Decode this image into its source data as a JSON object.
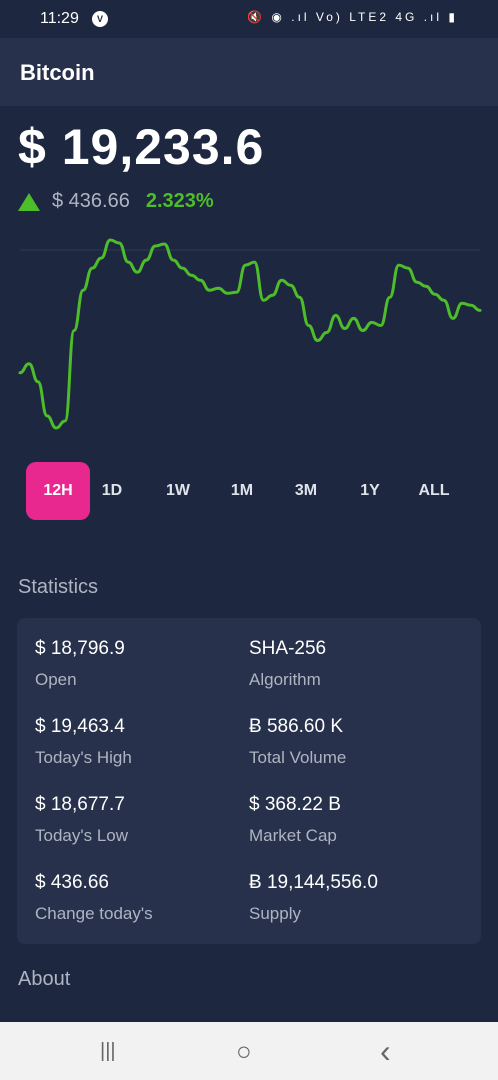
{
  "status_bar": {
    "time": "11:29",
    "badge": "V",
    "icons": "🔇 ◉ .ıl Vo) LTE2 4G .ıl ▮"
  },
  "app_bar": {
    "title": "Bitcoin"
  },
  "price": {
    "value": "$ 19,233.6",
    "change_abs": "$ 436.66",
    "change_pct": "2.323%",
    "direction": "up",
    "color_up": "#4dbd2a"
  },
  "chart_data": {
    "type": "line",
    "color": "#4dbd2a",
    "values": [
      372,
      363,
      381,
      415,
      427,
      420,
      330,
      290,
      268,
      258,
      240,
      243,
      262,
      272,
      260,
      246,
      244,
      260,
      268,
      275,
      280,
      290,
      288,
      293,
      292,
      265,
      262,
      300,
      295,
      280,
      285,
      297,
      325,
      340,
      332,
      315,
      328,
      318,
      330,
      322,
      325,
      297,
      265,
      268,
      282,
      286,
      294,
      300,
      318,
      303,
      305,
      310
    ],
    "title": "",
    "xlabel": "",
    "ylabel": ""
  },
  "ranges": {
    "items": [
      "12H",
      "1D",
      "1W",
      "1M",
      "3M",
      "1Y",
      "ALL"
    ],
    "active": "12H",
    "active_color": "#e8288e"
  },
  "statistics": {
    "heading": "Statistics",
    "items": [
      {
        "value": "$ 18,796.9",
        "label": "Open"
      },
      {
        "value": "SHA-256",
        "label": "Algorithm"
      },
      {
        "value": "$ 19,463.4",
        "label": "Today's High"
      },
      {
        "value": "Ƀ 586.60 K",
        "label": "Total Volume"
      },
      {
        "value": "$ 18,677.7",
        "label": "Today's Low"
      },
      {
        "value": "$ 368.22 B",
        "label": "Market Cap"
      },
      {
        "value": "$ 436.66",
        "label": "Change today's"
      },
      {
        "value": "Ƀ 19,144,556.0",
        "label": "Supply"
      }
    ]
  },
  "about": {
    "heading": "About"
  },
  "nav": {
    "recents": "|||",
    "home": "○",
    "back": "‹"
  }
}
